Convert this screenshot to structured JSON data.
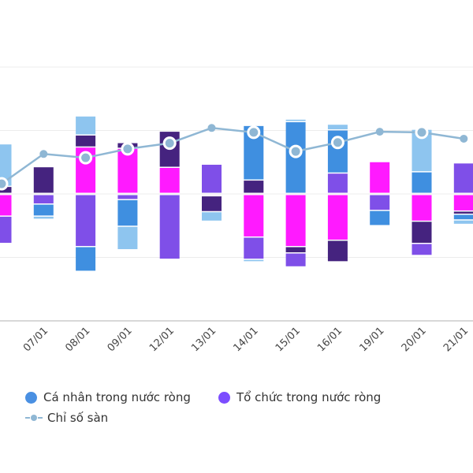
{
  "chart_data": {
    "type": "bar",
    "stacked": true,
    "categories": [
      "",
      "07/01",
      "08/01",
      "09/01",
      "12/01",
      "13/01",
      "14/01",
      "15/01",
      "16/01",
      "19/01",
      "20/01",
      "21/01"
    ],
    "ylim": [
      -2,
      2
    ],
    "grid": true,
    "legend_placement": "bottom",
    "series": [
      {
        "key": "lightblue",
        "color": "#8ec5ef",
        "values": [
          0.67,
          -0.05,
          0.3,
          -0.37,
          0,
          -0.15,
          -0.04,
          0.04,
          0.09,
          0,
          0.67,
          -0.07
        ]
      },
      {
        "key": "blue",
        "name": "Cá nhân trong nước ròng",
        "color": "#3f8fe0",
        "values": [
          0,
          -0.19,
          -0.39,
          -0.42,
          0,
          0,
          0.86,
          1.13,
          0.68,
          -0.24,
          0.34,
          -0.09
        ]
      },
      {
        "key": "darkpurple",
        "color": "#45237f",
        "values": [
          0.11,
          0.42,
          0.19,
          0.09,
          0.57,
          -0.25,
          0.21,
          -0.1,
          -0.34,
          0,
          -0.35,
          -0.05
        ]
      },
      {
        "key": "magenta",
        "color": "#ff1aff",
        "values": [
          -0.34,
          0,
          0.73,
          0.71,
          0.41,
          -0.02,
          -0.67,
          -0.82,
          -0.72,
          0.5,
          -0.42,
          -0.26
        ]
      },
      {
        "key": "purple",
        "name": "Tổ chức trong nước ròng",
        "color": "#7f4fe8",
        "values": [
          -0.43,
          -0.15,
          -0.82,
          -0.08,
          -1.02,
          0.46,
          -0.35,
          -0.22,
          0.32,
          -0.25,
          -0.19,
          0.48
        ]
      }
    ],
    "line": {
      "name": "Chỉ số sàn",
      "color": "#8fb7d4",
      "values": [
        0.16,
        0.63,
        0.57,
        0.71,
        0.8,
        1.04,
        0.97,
        0.67,
        0.81,
        0.98,
        0.97,
        0.87
      ],
      "highlighted": [
        true,
        false,
        true,
        true,
        true,
        false,
        true,
        true,
        true,
        false,
        true,
        false
      ]
    }
  },
  "legend": {
    "blue_label": "Cá nhân trong nước ròng",
    "purple_label": "Tổ chức trong nước ròng",
    "line_label": "Chỉ số sàn"
  }
}
